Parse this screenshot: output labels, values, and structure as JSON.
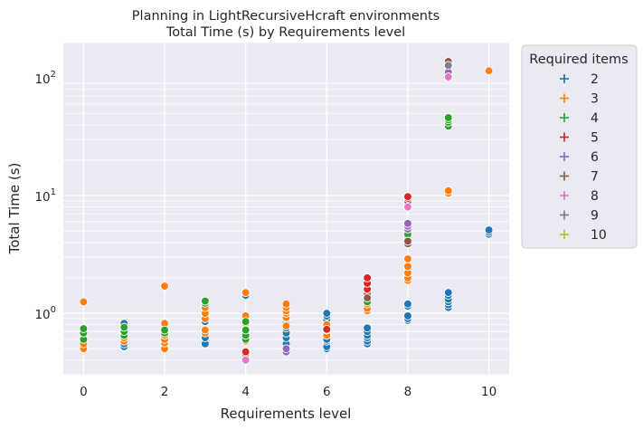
{
  "chart_data": {
    "type": "scatter",
    "title": "Planning in LightRecursiveHcraft environments",
    "subtitle": "Total Time (s) by Requirements level",
    "xlabel": "Requirements level",
    "ylabel": "Total Time (s)",
    "xlim": [
      -0.5,
      10.5
    ],
    "ylim": [
      0.3,
      200
    ],
    "yscale": "log",
    "grid": true,
    "background": "#eaeaf2",
    "x_ticks": [
      {
        "value": 0,
        "label": "0"
      },
      {
        "value": 2,
        "label": "2"
      },
      {
        "value": 4,
        "label": "4"
      },
      {
        "value": 6,
        "label": "6"
      },
      {
        "value": 8,
        "label": "8"
      },
      {
        "value": 10,
        "label": "10"
      }
    ],
    "y_ticks": [
      {
        "value": 1,
        "base": "10",
        "exp": "0"
      },
      {
        "value": 10,
        "base": "10",
        "exp": "1"
      },
      {
        "value": 100,
        "base": "10",
        "exp": "2"
      }
    ],
    "legend": {
      "title": "Required items",
      "placement": "outside-right",
      "entries": [
        {
          "label": "2",
          "color": "#1f77b4"
        },
        {
          "label": "3",
          "color": "#ff7f0e"
        },
        {
          "label": "4",
          "color": "#2ca02c"
        },
        {
          "label": "5",
          "color": "#d62728"
        },
        {
          "label": "6",
          "color": "#9467bd"
        },
        {
          "label": "7",
          "color": "#8c564b"
        },
        {
          "label": "8",
          "color": "#e377c2"
        },
        {
          "label": "9",
          "color": "#7f7f7f"
        },
        {
          "label": "10",
          "color": "#bcbd22"
        }
      ]
    },
    "series": [
      {
        "name": "2",
        "color": "#1f77b4",
        "points": [
          [
            1,
            0.52
          ],
          [
            1,
            0.55
          ],
          [
            1,
            0.6
          ],
          [
            1,
            0.68
          ],
          [
            1,
            0.78
          ],
          [
            1,
            0.82
          ],
          [
            3,
            0.55
          ],
          [
            3,
            0.62
          ],
          [
            3,
            0.7
          ],
          [
            3,
            0.85
          ],
          [
            3,
            0.95
          ],
          [
            4,
            1.42
          ],
          [
            4,
            1.5
          ],
          [
            5,
            0.55
          ],
          [
            5,
            0.62
          ],
          [
            5,
            0.68
          ],
          [
            5,
            0.75
          ],
          [
            5,
            0.85
          ],
          [
            5,
            0.9
          ],
          [
            6,
            0.5
          ],
          [
            6,
            0.52
          ],
          [
            6,
            0.58
          ],
          [
            6,
            0.6
          ],
          [
            6,
            0.68
          ],
          [
            6,
            0.8
          ],
          [
            6,
            0.88
          ],
          [
            6,
            0.95
          ],
          [
            6,
            1.0
          ],
          [
            7,
            0.55
          ],
          [
            7,
            0.58
          ],
          [
            7,
            0.62
          ],
          [
            7,
            0.65
          ],
          [
            7,
            0.7
          ],
          [
            7,
            0.75
          ],
          [
            8,
            0.87
          ],
          [
            8,
            0.9
          ],
          [
            8,
            0.95
          ],
          [
            8,
            1.15
          ],
          [
            8,
            1.2
          ],
          [
            9,
            1.12
          ],
          [
            9,
            1.18
          ],
          [
            9,
            1.25
          ],
          [
            9,
            1.32
          ],
          [
            9,
            1.42
          ],
          [
            9,
            1.5
          ],
          [
            10,
            4.7
          ],
          [
            10,
            4.9
          ],
          [
            10,
            5.1
          ]
        ]
      },
      {
        "name": "3",
        "color": "#ff7f0e",
        "points": [
          [
            0,
            0.5
          ],
          [
            0,
            0.55
          ],
          [
            0,
            1.25
          ],
          [
            1,
            0.58
          ],
          [
            1,
            0.62
          ],
          [
            1,
            0.7
          ],
          [
            2,
            0.5
          ],
          [
            2,
            0.56
          ],
          [
            2,
            0.6
          ],
          [
            2,
            0.65
          ],
          [
            2,
            0.82
          ],
          [
            2,
            1.7
          ],
          [
            3,
            0.68
          ],
          [
            3,
            0.72
          ],
          [
            3,
            0.9
          ],
          [
            3,
            1.0
          ],
          [
            3,
            1.12
          ],
          [
            4,
            0.58
          ],
          [
            4,
            0.62
          ],
          [
            4,
            0.7
          ],
          [
            4,
            0.75
          ],
          [
            4,
            0.82
          ],
          [
            4,
            0.95
          ],
          [
            4,
            1.5
          ],
          [
            5,
            0.78
          ],
          [
            5,
            0.92
          ],
          [
            5,
            1.0
          ],
          [
            5,
            1.05
          ],
          [
            5,
            1.12
          ],
          [
            5,
            1.2
          ],
          [
            6,
            0.65
          ],
          [
            6,
            0.72
          ],
          [
            6,
            0.8
          ],
          [
            7,
            1.05
          ],
          [
            7,
            1.1
          ],
          [
            7,
            1.2
          ],
          [
            7,
            1.3
          ],
          [
            7,
            1.5
          ],
          [
            7,
            1.7
          ],
          [
            8,
            1.9
          ],
          [
            8,
            2.0
          ],
          [
            8,
            2.2
          ],
          [
            8,
            2.5
          ],
          [
            8,
            2.9
          ],
          [
            9,
            10.5
          ],
          [
            9,
            11.0
          ],
          [
            10,
            115
          ]
        ]
      },
      {
        "name": "4",
        "color": "#2ca02c",
        "points": [
          [
            0,
            0.6
          ],
          [
            0,
            0.68
          ],
          [
            0,
            0.74
          ],
          [
            1,
            0.65
          ],
          [
            1,
            0.7
          ],
          [
            1,
            0.76
          ],
          [
            2,
            0.68
          ],
          [
            2,
            0.72
          ],
          [
            3,
            1.22
          ],
          [
            3,
            1.27
          ],
          [
            4,
            0.6
          ],
          [
            4,
            0.65
          ],
          [
            4,
            0.72
          ],
          [
            4,
            0.85
          ],
          [
            7,
            1.25
          ],
          [
            8,
            4.0
          ],
          [
            8,
            4.5
          ],
          [
            8,
            4.7
          ],
          [
            9,
            39
          ],
          [
            9,
            42
          ],
          [
            9,
            44
          ],
          [
            9,
            46
          ]
        ]
      },
      {
        "name": "5",
        "color": "#d62728",
        "points": [
          [
            4,
            0.43
          ],
          [
            4,
            0.45
          ],
          [
            4,
            0.47
          ],
          [
            6,
            0.73
          ],
          [
            7,
            1.45
          ],
          [
            7,
            1.6
          ],
          [
            7,
            1.8
          ],
          [
            7,
            2.0
          ],
          [
            8,
            8.5
          ],
          [
            8,
            9.0
          ],
          [
            8,
            9.5
          ],
          [
            8,
            9.8
          ]
        ]
      },
      {
        "name": "6",
        "color": "#9467bd",
        "points": [
          [
            5,
            0.47
          ],
          [
            5,
            0.5
          ],
          [
            8,
            5.2
          ],
          [
            8,
            5.5
          ],
          [
            8,
            5.8
          ],
          [
            9,
            105
          ],
          [
            9,
            112
          ]
        ]
      },
      {
        "name": "7",
        "color": "#8c564b",
        "points": [
          [
            7,
            1.35
          ],
          [
            8,
            3.9
          ],
          [
            8,
            4.1
          ],
          [
            9,
            132
          ],
          [
            9,
            138
          ]
        ]
      },
      {
        "name": "8",
        "color": "#e377c2",
        "points": [
          [
            4,
            0.4
          ],
          [
            8,
            8.0
          ],
          [
            9,
            100
          ],
          [
            9,
            102
          ]
        ]
      },
      {
        "name": "9",
        "color": "#7f7f7f",
        "points": [
          [
            9,
            128
          ]
        ]
      },
      {
        "name": "10",
        "color": "#bcbd22",
        "points": []
      }
    ]
  }
}
